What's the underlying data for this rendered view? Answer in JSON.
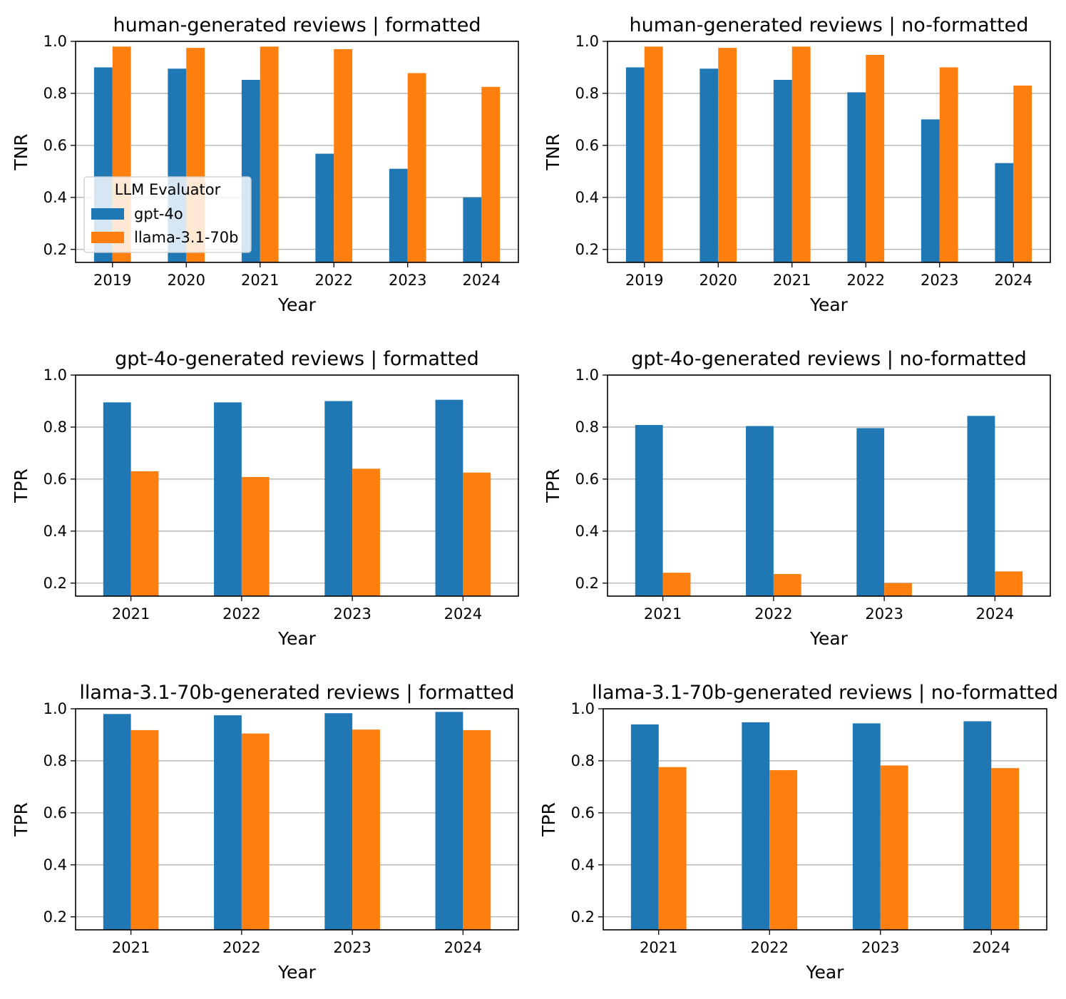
{
  "legend": {
    "title": "LLM Evaluator",
    "entries": [
      "gpt-4o",
      "llama-3.1-70b"
    ]
  },
  "colors": {
    "gpt-4o": "#1f77b4",
    "llama-3.1-70b": "#ff7f0e"
  },
  "chart_data": [
    {
      "type": "bar",
      "title": "human-generated reviews | formatted",
      "xlabel": "Year",
      "ylabel": "TNR",
      "categories": [
        "2019",
        "2020",
        "2021",
        "2022",
        "2023",
        "2024"
      ],
      "ylim": [
        0.15,
        1.0
      ],
      "yticks": [
        "0.2",
        "0.4",
        "0.6",
        "0.8",
        "1.0"
      ],
      "grid": "y",
      "legend_position": "lower-left",
      "series": [
        {
          "name": "gpt-4o",
          "values": [
            0.9,
            0.895,
            0.852,
            0.568,
            0.51,
            0.4
          ]
        },
        {
          "name": "llama-3.1-70b",
          "values": [
            0.98,
            0.975,
            0.98,
            0.97,
            0.878,
            0.825
          ]
        }
      ]
    },
    {
      "type": "bar",
      "title": "human-generated reviews | no-formatted",
      "xlabel": "Year",
      "ylabel": "TNR",
      "categories": [
        "2019",
        "2020",
        "2021",
        "2022",
        "2023",
        "2024"
      ],
      "ylim": [
        0.15,
        1.0
      ],
      "yticks": [
        "0.2",
        "0.4",
        "0.6",
        "0.8",
        "1.0"
      ],
      "grid": "y",
      "series": [
        {
          "name": "gpt-4o",
          "values": [
            0.9,
            0.895,
            0.852,
            0.804,
            0.7,
            0.532
          ]
        },
        {
          "name": "llama-3.1-70b",
          "values": [
            0.98,
            0.975,
            0.98,
            0.948,
            0.9,
            0.83
          ]
        }
      ]
    },
    {
      "type": "bar",
      "title": "gpt-4o-generated reviews | formatted",
      "xlabel": "Year",
      "ylabel": "TPR",
      "categories": [
        "2021",
        "2022",
        "2023",
        "2024"
      ],
      "ylim": [
        0.15,
        1.0
      ],
      "yticks": [
        "0.2",
        "0.4",
        "0.6",
        "0.8",
        "1.0"
      ],
      "grid": "y",
      "series": [
        {
          "name": "gpt-4o",
          "values": [
            0.895,
            0.895,
            0.9,
            0.905
          ]
        },
        {
          "name": "llama-3.1-70b",
          "values": [
            0.63,
            0.608,
            0.64,
            0.625
          ]
        }
      ]
    },
    {
      "type": "bar",
      "title": "gpt-4o-generated reviews | no-formatted",
      "xlabel": "Year",
      "ylabel": "TPR",
      "categories": [
        "2021",
        "2022",
        "2023",
        "2024"
      ],
      "ylim": [
        0.15,
        1.0
      ],
      "yticks": [
        "0.2",
        "0.4",
        "0.6",
        "0.8",
        "1.0"
      ],
      "grid": "y",
      "series": [
        {
          "name": "gpt-4o",
          "values": [
            0.808,
            0.804,
            0.796,
            0.843
          ]
        },
        {
          "name": "llama-3.1-70b",
          "values": [
            0.24,
            0.235,
            0.2,
            0.245
          ]
        }
      ]
    },
    {
      "type": "bar",
      "title": "llama-3.1-70b-generated reviews | formatted",
      "xlabel": "Year",
      "ylabel": "TPR",
      "categories": [
        "2021",
        "2022",
        "2023",
        "2024"
      ],
      "ylim": [
        0.15,
        1.0
      ],
      "yticks": [
        "0.2",
        "0.4",
        "0.6",
        "0.8",
        "1.0"
      ],
      "grid": "y",
      "series": [
        {
          "name": "gpt-4o",
          "values": [
            0.98,
            0.975,
            0.983,
            0.988
          ]
        },
        {
          "name": "llama-3.1-70b",
          "values": [
            0.918,
            0.905,
            0.92,
            0.918
          ]
        }
      ]
    },
    {
      "type": "bar",
      "title": "llama-3.1-70b-generated reviews | no-formatted",
      "xlabel": "Year",
      "ylabel": "TPR",
      "categories": [
        "2021",
        "2022",
        "2023",
        "2024"
      ],
      "ylim": [
        0.15,
        1.0
      ],
      "yticks": [
        "0.2",
        "0.4",
        "0.6",
        "0.8",
        "1.0"
      ],
      "grid": "y",
      "series": [
        {
          "name": "gpt-4o",
          "values": [
            0.94,
            0.948,
            0.944,
            0.952
          ]
        },
        {
          "name": "llama-3.1-70b",
          "values": [
            0.776,
            0.764,
            0.782,
            0.772
          ]
        }
      ]
    }
  ]
}
